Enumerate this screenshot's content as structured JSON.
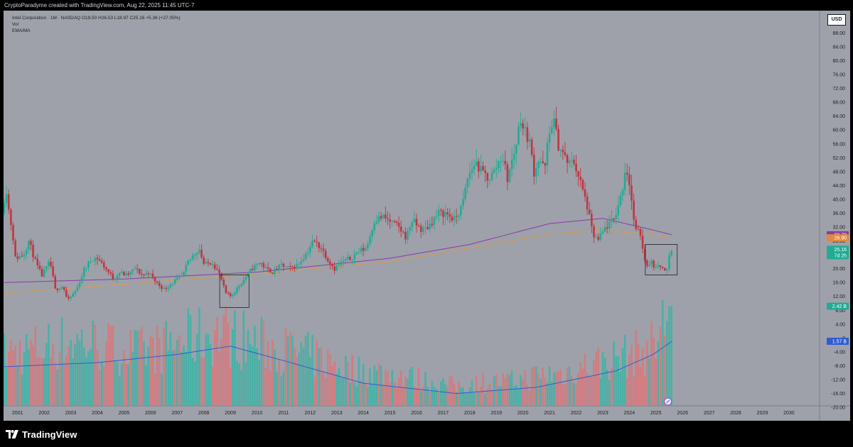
{
  "caption": "CryptoParadyme created with TradingView.com, Aug 22, 2025 11:45 UTC-7",
  "legend": {
    "symbol_line": "Intel Corporation · 1M · NASDAQ  O19.50  H26.53  L18.97  C25.16  +5.36 (+27.05%)",
    "vol": "Vol",
    "ema_ma": "EMA/MA"
  },
  "currency": "USD",
  "brand": "TradingView",
  "colors": {
    "background": "#9ea1a9",
    "up": "#22ab94",
    "down": "#c03540",
    "vol_up": "#3bb3a6",
    "vol_down": "#d9757a",
    "ema": "#8a3aa8",
    "ma": "#d99a4e",
    "vol_ma": "#2f5bd3"
  },
  "chart_data": {
    "type": "candlestick",
    "price_axis": {
      "ticks": [
        "88.00",
        "84.00",
        "80.00",
        "76.00",
        "72.00",
        "68.00",
        "64.00",
        "60.00",
        "56.00",
        "52.00",
        "48.00",
        "44.00",
        "40.00",
        "36.00",
        "32.00",
        "28.00",
        "24.00",
        "20.00",
        "16.00",
        "12.00",
        "8.00",
        "4.00",
        "0",
        "-4.00",
        "-8.00",
        "-12.00",
        "-16.00",
        "-20.00"
      ],
      "range": [
        -20,
        90
      ]
    },
    "time_axis": [
      "2001",
      "2002",
      "2003",
      "2004",
      "2005",
      "2006",
      "2007",
      "2008",
      "2009",
      "2010",
      "2011",
      "2012",
      "2013",
      "2014",
      "2015",
      "2016",
      "2017",
      "2018",
      "2019",
      "2020",
      "2021",
      "2022",
      "2023",
      "2024",
      "2025",
      "2026",
      "2027",
      "2028",
      "2029",
      "2030"
    ],
    "price_path": [
      [
        2000.5,
        36
      ],
      [
        2000.65,
        44
      ],
      [
        2000.75,
        37
      ],
      [
        2000.9,
        30
      ],
      [
        2001.0,
        23
      ],
      [
        2001.3,
        24
      ],
      [
        2001.5,
        28
      ],
      [
        2001.8,
        21
      ],
      [
        2002.0,
        18
      ],
      [
        2002.3,
        22
      ],
      [
        2002.5,
        14
      ],
      [
        2002.8,
        15
      ],
      [
        2002.9,
        12
      ],
      [
        2003.0,
        11
      ],
      [
        2003.3,
        14
      ],
      [
        2003.6,
        20
      ],
      [
        2003.9,
        23
      ],
      [
        2004.1,
        23
      ],
      [
        2004.4,
        20
      ],
      [
        2004.7,
        17
      ],
      [
        2004.9,
        19
      ],
      [
        2005.2,
        18
      ],
      [
        2005.5,
        20
      ],
      [
        2005.8,
        18
      ],
      [
        2006.0,
        19
      ],
      [
        2006.3,
        16
      ],
      [
        2006.6,
        14
      ],
      [
        2006.9,
        16
      ],
      [
        2007.3,
        18
      ],
      [
        2007.5,
        22
      ],
      [
        2007.9,
        26
      ],
      [
        2008.1,
        21
      ],
      [
        2008.4,
        22
      ],
      [
        2008.7,
        18
      ],
      [
        2008.9,
        13
      ],
      [
        2009.1,
        12
      ],
      [
        2009.4,
        15
      ],
      [
        2009.7,
        18
      ],
      [
        2009.9,
        20
      ],
      [
        2010.2,
        22
      ],
      [
        2010.4,
        20
      ],
      [
        2010.7,
        19
      ],
      [
        2011.0,
        21
      ],
      [
        2011.3,
        20
      ],
      [
        2011.6,
        21
      ],
      [
        2011.9,
        24
      ],
      [
        2012.2,
        28
      ],
      [
        2012.5,
        26
      ],
      [
        2012.8,
        22
      ],
      [
        2013.0,
        20
      ],
      [
        2013.3,
        22
      ],
      [
        2013.6,
        23
      ],
      [
        2013.9,
        25
      ],
      [
        2014.2,
        26
      ],
      [
        2014.5,
        34
      ],
      [
        2014.8,
        35
      ],
      [
        2015.0,
        34
      ],
      [
        2015.4,
        32
      ],
      [
        2015.7,
        29
      ],
      [
        2015.9,
        34
      ],
      [
        2016.3,
        31
      ],
      [
        2016.5,
        32
      ],
      [
        2016.9,
        36
      ],
      [
        2017.2,
        36
      ],
      [
        2017.5,
        34
      ],
      [
        2017.8,
        38
      ],
      [
        2018.0,
        46
      ],
      [
        2018.3,
        51
      ],
      [
        2018.5,
        48
      ],
      [
        2018.8,
        46
      ],
      [
        2019.0,
        48
      ],
      [
        2019.3,
        53
      ],
      [
        2019.5,
        46
      ],
      [
        2019.8,
        55
      ],
      [
        2020.0,
        64
      ],
      [
        2020.1,
        60
      ],
      [
        2020.3,
        58
      ],
      [
        2020.5,
        48
      ],
      [
        2020.7,
        52
      ],
      [
        2020.9,
        48
      ],
      [
        2021.0,
        55
      ],
      [
        2021.2,
        64
      ],
      [
        2021.4,
        56
      ],
      [
        2021.6,
        53
      ],
      [
        2021.8,
        50
      ],
      [
        2022.0,
        51
      ],
      [
        2022.2,
        46
      ],
      [
        2022.5,
        38
      ],
      [
        2022.7,
        30
      ],
      [
        2022.9,
        28
      ],
      [
        2023.2,
        32
      ],
      [
        2023.5,
        34
      ],
      [
        2023.8,
        42
      ],
      [
        2023.95,
        50
      ],
      [
        2024.1,
        44
      ],
      [
        2024.3,
        31
      ],
      [
        2024.5,
        30
      ],
      [
        2024.7,
        21
      ],
      [
        2024.9,
        22
      ],
      [
        2025.1,
        20
      ],
      [
        2025.3,
        21
      ],
      [
        2025.5,
        19.5
      ],
      [
        2025.6,
        25.16
      ]
    ],
    "volume_path": [
      [
        2000.5,
        1.2
      ],
      [
        2001.5,
        1.3
      ],
      [
        2002.5,
        1.45
      ],
      [
        2003.5,
        1.5
      ],
      [
        2004.5,
        1.35
      ],
      [
        2005.5,
        1.25
      ],
      [
        2006.5,
        1.35
      ],
      [
        2007.5,
        1.55
      ],
      [
        2008.5,
        1.7
      ],
      [
        2009.5,
        1.55
      ],
      [
        2010.5,
        1.35
      ],
      [
        2011.5,
        1.25
      ],
      [
        2012.5,
        1.05
      ],
      [
        2013.5,
        0.85
      ],
      [
        2014.5,
        0.78
      ],
      [
        2015.5,
        0.7
      ],
      [
        2016.5,
        0.55
      ],
      [
        2017.5,
        0.45
      ],
      [
        2018.5,
        0.55
      ],
      [
        2019.5,
        0.55
      ],
      [
        2020.5,
        0.7
      ],
      [
        2021.5,
        0.75
      ],
      [
        2022.5,
        0.95
      ],
      [
        2023.5,
        1.1
      ],
      [
        2024.5,
        1.25
      ],
      [
        2025.0,
        1.45
      ],
      [
        2025.6,
        2.42
      ]
    ],
    "series": [
      {
        "name": "EMA",
        "points": [
          [
            2000.5,
            16
          ],
          [
            2005,
            17
          ],
          [
            2010,
            19
          ],
          [
            2015,
            23
          ],
          [
            2018,
            27
          ],
          [
            2021,
            33
          ],
          [
            2023,
            34.5
          ],
          [
            2024.7,
            31.5
          ],
          [
            2025.6,
            29.79
          ]
        ]
      },
      {
        "name": "MA",
        "points": [
          [
            2000.5,
            13
          ],
          [
            2005,
            15.5
          ],
          [
            2010,
            18.5
          ],
          [
            2015,
            22
          ],
          [
            2018,
            26
          ],
          [
            2021,
            30
          ],
          [
            2023,
            31
          ],
          [
            2024.7,
            30
          ],
          [
            2025.6,
            28.9
          ]
        ]
      },
      {
        "name": "Vol MA",
        "points": [
          [
            2000.5,
            0.95
          ],
          [
            2004,
            1.05
          ],
          [
            2007,
            1.25
          ],
          [
            2009,
            1.45
          ],
          [
            2011,
            1.1
          ],
          [
            2014,
            0.55
          ],
          [
            2017.5,
            0.3
          ],
          [
            2020.5,
            0.45
          ],
          [
            2023.5,
            0.85
          ],
          [
            2024.9,
            1.25
          ],
          [
            2025.6,
            1.57
          ]
        ]
      }
    ],
    "boxes": [
      {
        "x0": 2008.6,
        "x1": 2009.7,
        "y0": 8.8,
        "y1": 18.2
      },
      {
        "x0": 2024.6,
        "x1": 2025.8,
        "y0": 18.2,
        "y1": 27.0
      }
    ],
    "last_labels": [
      {
        "name": "EMA",
        "value": "29.79",
        "color": "#8a3aa8"
      },
      {
        "name": "MA",
        "value": "28.90",
        "color": "#e08a3c"
      },
      {
        "name": "Price",
        "value": "25.16",
        "sub": "7d 2h",
        "color": "#22ab94"
      },
      {
        "name": "Volume",
        "value": "2.42 B",
        "color": "#22ab94"
      },
      {
        "name": "Vol MA",
        "value": "1.57 B",
        "color": "#2f5bd3"
      }
    ]
  }
}
